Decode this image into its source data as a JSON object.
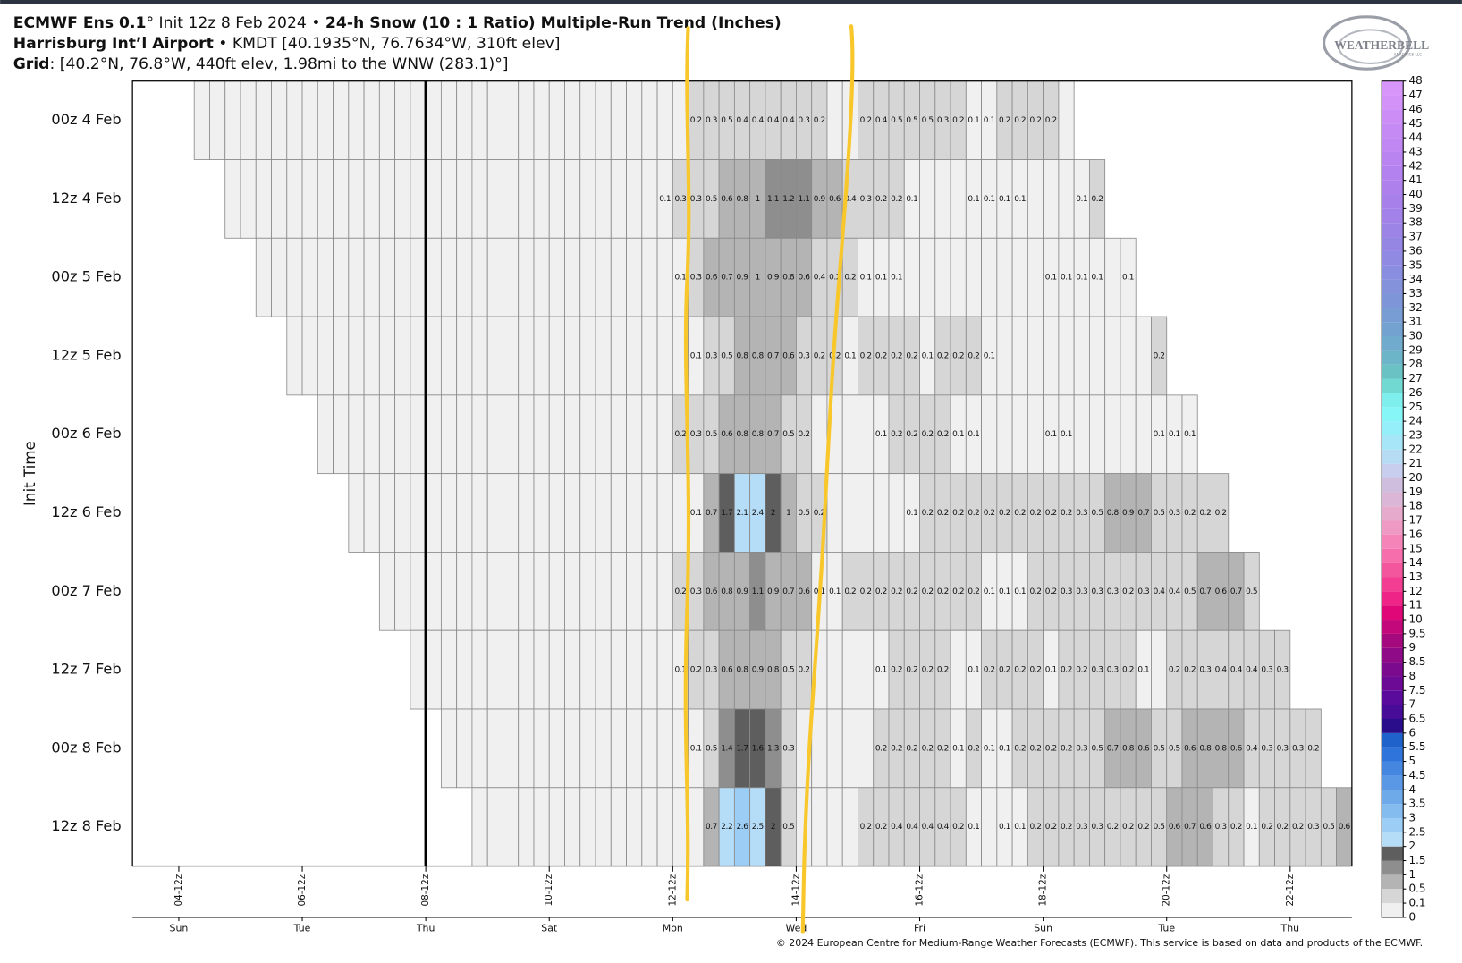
{
  "chart_data": {
    "type": "trend-grid",
    "title_lines": [
      [
        {
          "text": "ECMWF Ens 0.1",
          "bold": true
        },
        {
          "text": "° Init 12z 8 Feb 2024 • ",
          "bold": false
        },
        {
          "text": "24-h Snow (10 : 1 Ratio) Multiple-Run Trend (Inches)",
          "bold": true
        }
      ],
      [
        {
          "text": "Harrisburg Int’l Airport",
          "bold": true
        },
        {
          "text": " • KMDT [40.1935°N, 76.7634°W, 310ft elev]",
          "bold": false
        }
      ],
      [
        {
          "text": "Grid",
          "bold": true
        },
        {
          "text": ": [40.2°N, 76.8°W, 440ft elev, 1.98mi to the WNW (283.1)°]",
          "bold": false
        }
      ]
    ],
    "ylabel": "Init Time",
    "xlim": [
      3.75,
      23.5
    ],
    "xticks": [
      {
        "value": 4.5,
        "label": "04-12z"
      },
      {
        "value": 6.5,
        "label": "06-12z"
      },
      {
        "value": 8.5,
        "label": "08-12z"
      },
      {
        "value": 10.5,
        "label": "10-12z"
      },
      {
        "value": 12.5,
        "label": "12-12z"
      },
      {
        "value": 14.5,
        "label": "14-12z"
      },
      {
        "value": 16.5,
        "label": "16-12z"
      },
      {
        "value": 18.5,
        "label": "18-12z"
      },
      {
        "value": 20.5,
        "label": "20-12z"
      },
      {
        "value": 22.5,
        "label": "22-12z"
      }
    ],
    "day_ticks": [
      {
        "value": 4.5,
        "label": "Sun"
      },
      {
        "value": 6.5,
        "label": "Tue"
      },
      {
        "value": 8.5,
        "label": "Thu"
      },
      {
        "value": 10.5,
        "label": "Sat"
      },
      {
        "value": 12.5,
        "label": "Mon"
      },
      {
        "value": 14.5,
        "label": "Wed"
      },
      {
        "value": 16.5,
        "label": "Fri"
      },
      {
        "value": 18.5,
        "label": "Sun"
      },
      {
        "value": 20.5,
        "label": "Tue"
      },
      {
        "value": 22.5,
        "label": "Thu"
      }
    ],
    "now": 8.5,
    "step": 0.25,
    "series": [
      {
        "name": "00z 4 Feb",
        "start": 4.75,
        "values": [
          0,
          0,
          0,
          0,
          0,
          0,
          0,
          0,
          0,
          0,
          0,
          0,
          0,
          0,
          0,
          0,
          0,
          0,
          0,
          0,
          0,
          0,
          0,
          0,
          0,
          0,
          0,
          0,
          0,
          0,
          0,
          0,
          0.2,
          0.3,
          0.5,
          0.4,
          0.4,
          0.4,
          0.4,
          0.3,
          0.2,
          0,
          0,
          0.2,
          0.4,
          0.5,
          0.5,
          0.5,
          0.3,
          0.2,
          0.1,
          0.1,
          0.2,
          0.2,
          0.2,
          0.2,
          0
        ]
      },
      {
        "name": "12z 4 Feb",
        "start": 5.25,
        "values": [
          0,
          0,
          0,
          0,
          0,
          0,
          0,
          0,
          0,
          0,
          0,
          0,
          0,
          0,
          0,
          0,
          0,
          0,
          0,
          0,
          0,
          0,
          0,
          0,
          0,
          0,
          0,
          0,
          0.1,
          0.3,
          0.3,
          0.5,
          0.6,
          0.8,
          1,
          1.1,
          1.2,
          1.1,
          0.9,
          0.6,
          0.4,
          0.3,
          0.2,
          0.2,
          0.1,
          0,
          0,
          0,
          0.1,
          0.1,
          0.1,
          0.1,
          0,
          0,
          0,
          0.1,
          0.2
        ]
      },
      {
        "name": "00z 5 Feb",
        "start": 5.75,
        "values": [
          0,
          0,
          0,
          0,
          0,
          0,
          0,
          0,
          0,
          0,
          0,
          0,
          0,
          0,
          0,
          0,
          0,
          0,
          0,
          0,
          0,
          0,
          0,
          0,
          0,
          0,
          0,
          0.1,
          0.3,
          0.6,
          0.7,
          0.9,
          1,
          0.9,
          0.8,
          0.6,
          0.4,
          0.2,
          0.2,
          0.1,
          0.1,
          0.1,
          0,
          0,
          0,
          0,
          0,
          0,
          0,
          0,
          0,
          0.1,
          0.1,
          0.1,
          0.1,
          0,
          0.1
        ]
      },
      {
        "name": "12z 5 Feb",
        "start": 6.25,
        "values": [
          0,
          0,
          0,
          0,
          0,
          0,
          0,
          0,
          0,
          0,
          0,
          0,
          0,
          0,
          0,
          0,
          0,
          0,
          0,
          0,
          0,
          0,
          0,
          0,
          0,
          0,
          0.1,
          0.3,
          0.5,
          0.8,
          0.8,
          0.7,
          0.6,
          0.3,
          0.2,
          0.2,
          0.1,
          0.2,
          0.2,
          0.2,
          0.2,
          0.1,
          0.2,
          0.2,
          0.2,
          0.1,
          0,
          0,
          0,
          0,
          0,
          0,
          0,
          0,
          0,
          0,
          0.2
        ]
      },
      {
        "name": "00z 6 Feb",
        "start": 6.75,
        "values": [
          0,
          0,
          0,
          0,
          0,
          0,
          0,
          0,
          0,
          0,
          0,
          0,
          0,
          0,
          0,
          0,
          0,
          0,
          0,
          0,
          0,
          0,
          0,
          0.2,
          0.3,
          0.5,
          0.6,
          0.8,
          0.8,
          0.7,
          0.5,
          0.2,
          0,
          0,
          0,
          0,
          0.1,
          0.2,
          0.2,
          0.2,
          0.2,
          0.1,
          0.1,
          0,
          0,
          0,
          0,
          0.1,
          0.1,
          0,
          0,
          0,
          0,
          0,
          0.1,
          0.1,
          0.1
        ]
      },
      {
        "name": "12z 6 Feb",
        "start": 7.25,
        "values": [
          0,
          0,
          0,
          0,
          0,
          0,
          0,
          0,
          0,
          0,
          0,
          0,
          0,
          0,
          0,
          0,
          0,
          0,
          0,
          0,
          0,
          0,
          0.1,
          0.7,
          1.7,
          2.1,
          2.4,
          2,
          1,
          0.5,
          0.2,
          0,
          0,
          0,
          0,
          0,
          0.1,
          0.2,
          0.2,
          0.2,
          0.2,
          0.2,
          0.2,
          0.2,
          0.2,
          0.2,
          0.2,
          0.3,
          0.5,
          0.8,
          0.9,
          0.7,
          0.5,
          0.3,
          0.2,
          0.2,
          0.2
        ]
      },
      {
        "name": "00z 7 Feb",
        "start": 7.75,
        "values": [
          0,
          0,
          0,
          0,
          0,
          0,
          0,
          0,
          0,
          0,
          0,
          0,
          0,
          0,
          0,
          0,
          0,
          0,
          0,
          0.2,
          0.3,
          0.6,
          0.8,
          0.9,
          1.1,
          0.9,
          0.7,
          0.6,
          0.1,
          0.1,
          0.2,
          0.2,
          0.2,
          0.2,
          0.2,
          0.2,
          0.2,
          0.2,
          0.2,
          0.1,
          0.1,
          0.1,
          0.2,
          0.2,
          0.3,
          0.3,
          0.3,
          0.3,
          0.2,
          0.3,
          0.4,
          0.4,
          0.5,
          0.7,
          0.6,
          0.7,
          0.5
        ]
      },
      {
        "name": "12z 7 Feb",
        "start": 8.25,
        "values": [
          0,
          0,
          0,
          0,
          0,
          0,
          0,
          0,
          0,
          0,
          0,
          0,
          0,
          0,
          0,
          0,
          0,
          0.1,
          0.2,
          0.3,
          0.6,
          0.8,
          0.9,
          0.8,
          0.5,
          0.2,
          0,
          0,
          0,
          0,
          0.1,
          0.2,
          0.2,
          0.2,
          0.2,
          0,
          0.1,
          0.2,
          0.2,
          0.2,
          0.2,
          0.1,
          0.2,
          0.2,
          0.3,
          0.3,
          0.2,
          0.1,
          0,
          0.2,
          0.2,
          0.3,
          0.4,
          0.4,
          0.4,
          0.3,
          0.3
        ]
      },
      {
        "name": "00z 8 Feb",
        "start": 8.75,
        "values": [
          0,
          0,
          0,
          0,
          0,
          0,
          0,
          0,
          0,
          0,
          0,
          0,
          0,
          0,
          0,
          0,
          0.1,
          0.5,
          1.4,
          1.7,
          1.6,
          1.3,
          0.3,
          0,
          0,
          0,
          0,
          0,
          0.2,
          0.2,
          0.2,
          0.2,
          0.2,
          0.1,
          0.2,
          0.1,
          0.1,
          0.2,
          0.2,
          0.2,
          0.2,
          0.3,
          0.5,
          0.7,
          0.8,
          0.6,
          0.5,
          0.5,
          0.6,
          0.8,
          0.8,
          0.6,
          0.4,
          0.3,
          0.3,
          0.3,
          0.2
        ]
      },
      {
        "name": "12z 8 Feb",
        "start": 9.25,
        "values": [
          0,
          0,
          0,
          0,
          0,
          0,
          0,
          0,
          0,
          0,
          0,
          0,
          0,
          0,
          0,
          0.7,
          2.2,
          2.6,
          2.5,
          2,
          0.5,
          0,
          0,
          0,
          0,
          0.2,
          0.2,
          0.4,
          0.4,
          0.4,
          0.4,
          0.2,
          0.1,
          0,
          0.1,
          0.1,
          0.2,
          0.2,
          0.2,
          0.3,
          0.3,
          0.2,
          0.2,
          0.2,
          0.5,
          0.6,
          0.7,
          0.6,
          0.3,
          0.2,
          0.1,
          0.2,
          0.2,
          0.2,
          0.3,
          0.5,
          0.6
        ]
      }
    ],
    "levels": [
      0,
      0.1,
      0.5,
      1,
      1.5,
      2,
      2.5,
      3,
      3.5,
      4,
      4.5,
      5,
      5.5,
      6,
      6.5,
      7,
      7.5,
      8,
      8.5,
      9,
      9.5,
      10,
      11,
      12,
      13,
      14,
      15,
      16,
      17,
      18,
      19,
      20,
      21,
      22,
      23,
      24,
      25,
      26,
      27,
      28,
      29,
      30,
      31,
      32,
      33,
      34,
      35,
      36,
      37,
      38,
      39,
      40,
      41,
      42,
      43,
      44,
      45,
      46,
      47,
      48
    ],
    "colors": [
      "#f0f0f0",
      "#d6d6d6",
      "#b4b4b4",
      "#8e8e8e",
      "#5e5e5e",
      "#b6ddf8",
      "#9ccdf4",
      "#84bcef",
      "#6eaaea",
      "#5a98e6",
      "#4486e0",
      "#2f74da",
      "#1f62cc",
      "#2a0d8a",
      "#470c98",
      "#5b0b9c",
      "#6c0a96",
      "#7c0a8e",
      "#8e0a86",
      "#a4097e",
      "#c2087a",
      "#e00878",
      "#ee2486",
      "#f23d92",
      "#f4569e",
      "#f66eab",
      "#f585b8",
      "#ee9ac4",
      "#e6aacd",
      "#dcb6d6",
      "#d0bedf",
      "#c8cfee",
      "#b6dcf4",
      "#a6e6f8",
      "#94effa",
      "#86f6f6",
      "#7eefec",
      "#72d8d2",
      "#6ac2c4",
      "#6cb4c8",
      "#70aacc",
      "#74a2d0",
      "#789cd4",
      "#7e96d8",
      "#8492dc",
      "#8a8ee0",
      "#908ae2",
      "#9686e4",
      "#9c84e6",
      "#a282e8",
      "#a880ea",
      "#ae80ec",
      "#b482ee",
      "#ba84f0",
      "#c086f2",
      "#c68af4",
      "#cc8ef6",
      "#d292f8",
      "#d896fa"
    ],
    "logo": {
      "name": "WEATHERBELL",
      "sub": "ANALYTICS LLC"
    },
    "footer": "© 2024 European Centre for Medium-Range Weather Forecasts (ECMWF). This service is based on data and products of the ECMWF."
  }
}
